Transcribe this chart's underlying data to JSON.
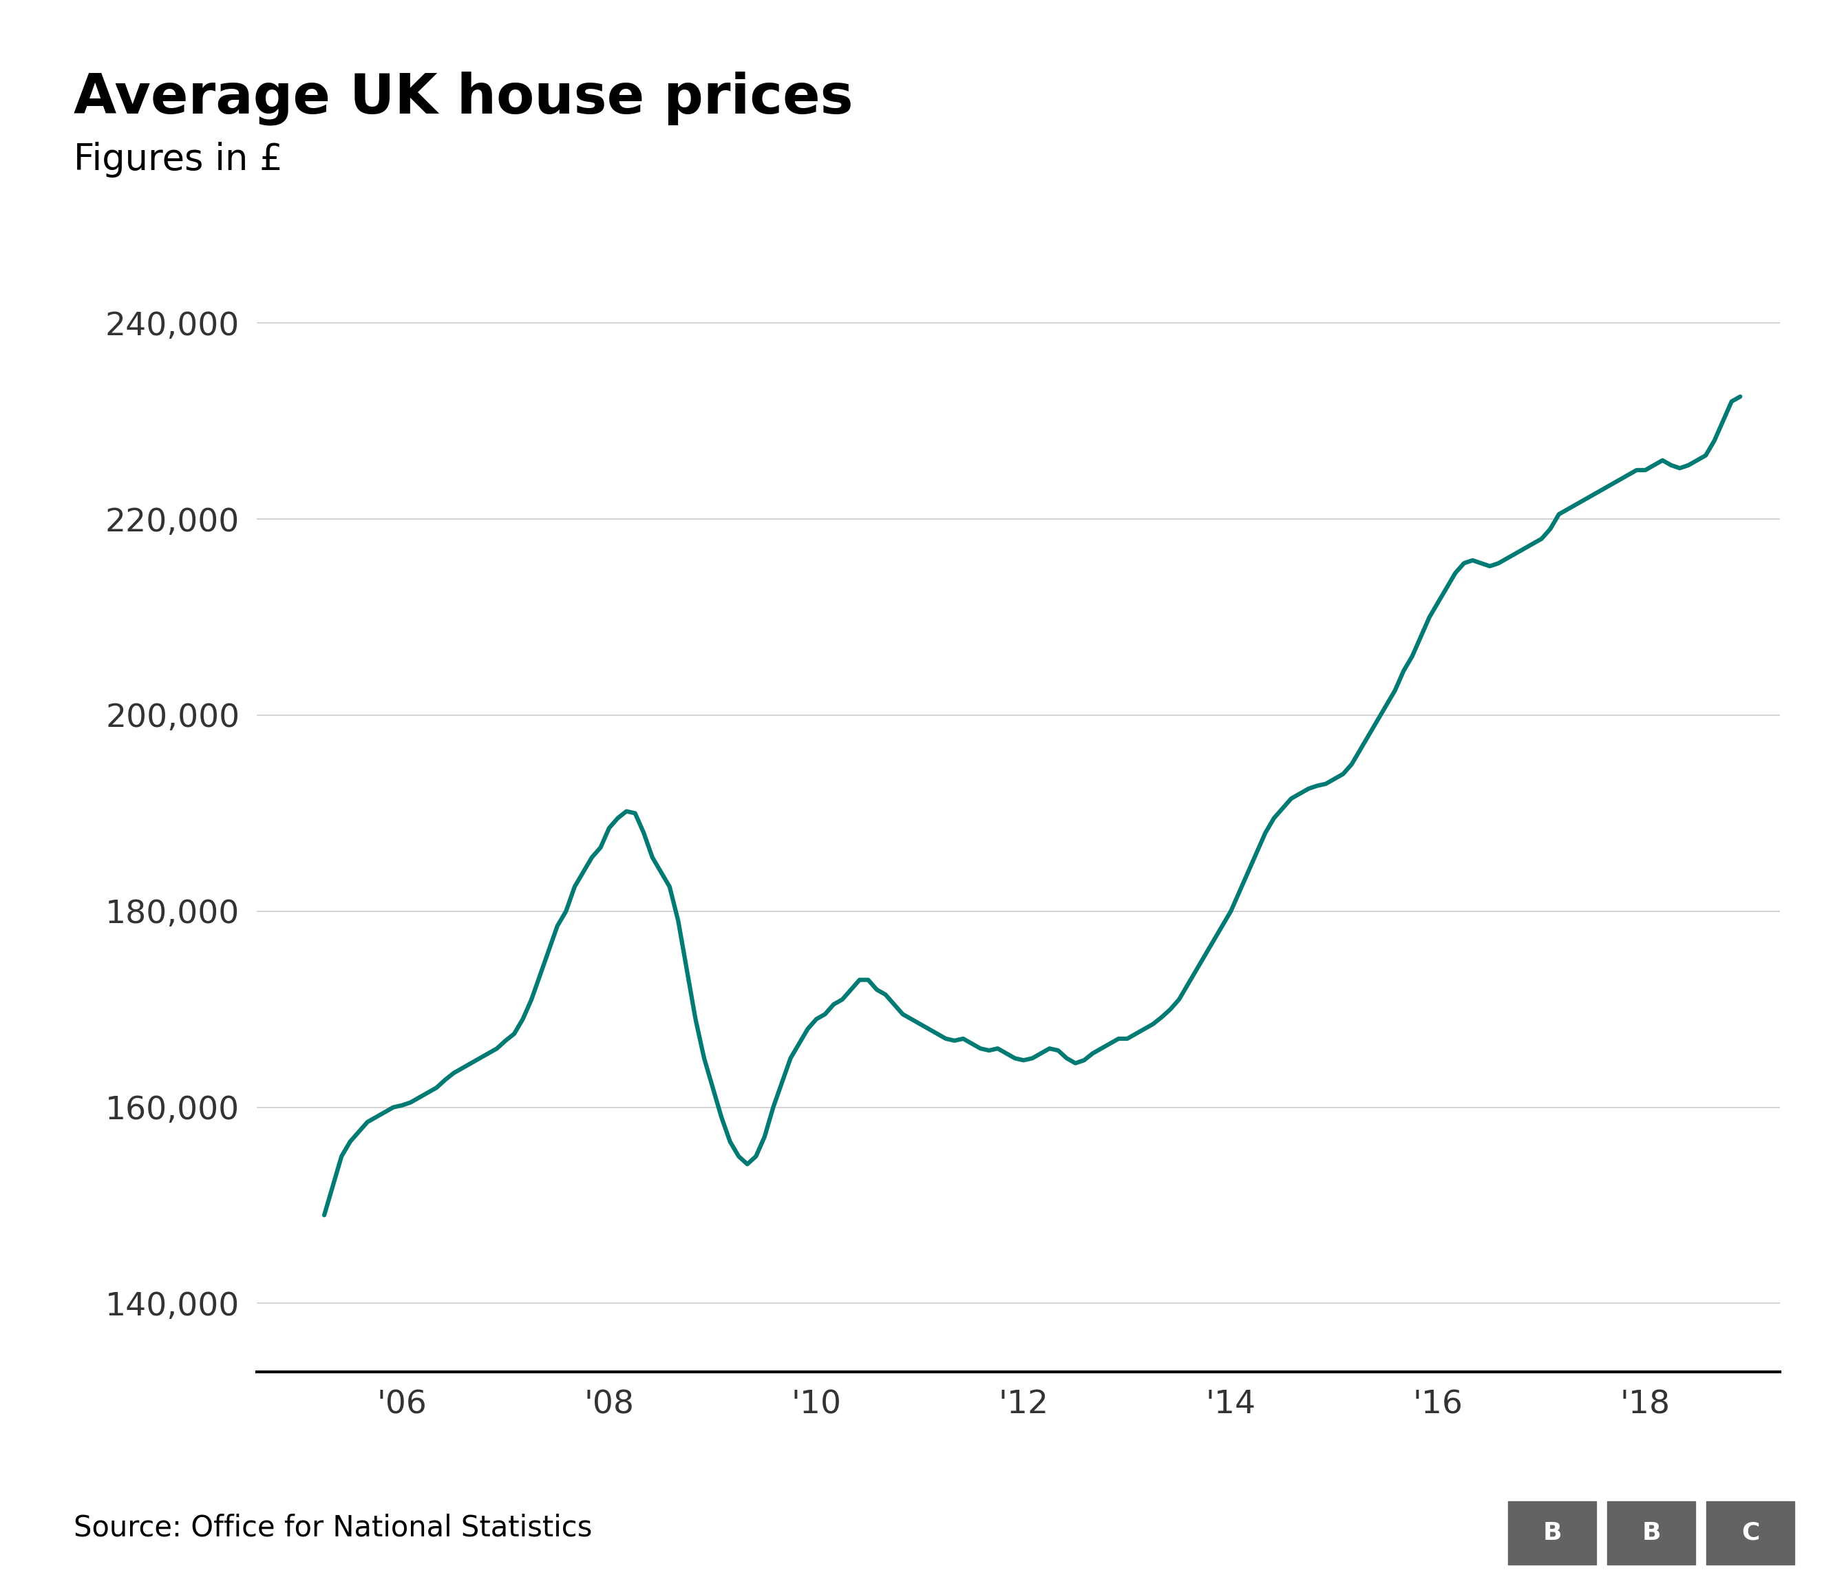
{
  "title": "Average UK house prices",
  "subtitle": "Figures in £",
  "source": "Source: Office for National Statistics",
  "line_color": "#007a73",
  "line_width": 4.5,
  "background_color": "#ffffff",
  "yticks": [
    140000,
    160000,
    180000,
    200000,
    220000,
    240000
  ],
  "ylim": [
    133000,
    244000
  ],
  "xtick_labels": [
    "'06",
    "'08",
    "'10",
    "'12",
    "'14",
    "'16",
    "'18"
  ],
  "xtick_positions": [
    2006,
    2008,
    2010,
    2012,
    2014,
    2016,
    2018
  ],
  "xlim": [
    2004.6,
    2019.3
  ],
  "title_fontsize": 58,
  "subtitle_fontsize": 38,
  "tick_fontsize": 34,
  "source_fontsize": 30,
  "bbc_color": "#636363",
  "data": {
    "2005-04": 149000,
    "2005-05": 152000,
    "2005-06": 155000,
    "2005-07": 156500,
    "2005-08": 157500,
    "2005-09": 158500,
    "2005-10": 159000,
    "2005-11": 159500,
    "2005-12": 160000,
    "2006-01": 160200,
    "2006-02": 160500,
    "2006-03": 161000,
    "2006-04": 161500,
    "2006-05": 162000,
    "2006-06": 162800,
    "2006-07": 163500,
    "2006-08": 164000,
    "2006-09": 164500,
    "2006-10": 165000,
    "2006-11": 165500,
    "2006-12": 166000,
    "2007-01": 166800,
    "2007-02": 167500,
    "2007-03": 169000,
    "2007-04": 171000,
    "2007-05": 173500,
    "2007-06": 176000,
    "2007-07": 178500,
    "2007-08": 180000,
    "2007-09": 182500,
    "2007-10": 184000,
    "2007-11": 185500,
    "2007-12": 186500,
    "2008-01": 188500,
    "2008-02": 189500,
    "2008-03": 190200,
    "2008-04": 190000,
    "2008-05": 188000,
    "2008-06": 185500,
    "2008-07": 184000,
    "2008-08": 182500,
    "2008-09": 179000,
    "2008-10": 174000,
    "2008-11": 169000,
    "2008-12": 165000,
    "2009-01": 162000,
    "2009-02": 159000,
    "2009-03": 156500,
    "2009-04": 155000,
    "2009-05": 154200,
    "2009-06": 155000,
    "2009-07": 157000,
    "2009-08": 160000,
    "2009-09": 162500,
    "2009-10": 165000,
    "2009-11": 166500,
    "2009-12": 168000,
    "2010-01": 169000,
    "2010-02": 169500,
    "2010-03": 170500,
    "2010-04": 171000,
    "2010-05": 172000,
    "2010-06": 173000,
    "2010-07": 173000,
    "2010-08": 172000,
    "2010-09": 171500,
    "2010-10": 170500,
    "2010-11": 169500,
    "2010-12": 169000,
    "2011-01": 168500,
    "2011-02": 168000,
    "2011-03": 167500,
    "2011-04": 167000,
    "2011-05": 166800,
    "2011-06": 167000,
    "2011-07": 166500,
    "2011-08": 166000,
    "2011-09": 165800,
    "2011-10": 166000,
    "2011-11": 165500,
    "2011-12": 165000,
    "2012-01": 164800,
    "2012-02": 165000,
    "2012-03": 165500,
    "2012-04": 166000,
    "2012-05": 165800,
    "2012-06": 165000,
    "2012-07": 164500,
    "2012-08": 164800,
    "2012-09": 165500,
    "2012-10": 166000,
    "2012-11": 166500,
    "2012-12": 167000,
    "2013-01": 167000,
    "2013-02": 167500,
    "2013-03": 168000,
    "2013-04": 168500,
    "2013-05": 169200,
    "2013-06": 170000,
    "2013-07": 171000,
    "2013-08": 172500,
    "2013-09": 174000,
    "2013-10": 175500,
    "2013-11": 177000,
    "2013-12": 178500,
    "2014-01": 180000,
    "2014-02": 182000,
    "2014-03": 184000,
    "2014-04": 186000,
    "2014-05": 188000,
    "2014-06": 189500,
    "2014-07": 190500,
    "2014-08": 191500,
    "2014-09": 192000,
    "2014-10": 192500,
    "2014-11": 192800,
    "2014-12": 193000,
    "2015-01": 193500,
    "2015-02": 194000,
    "2015-03": 195000,
    "2015-04": 196500,
    "2015-05": 198000,
    "2015-06": 199500,
    "2015-07": 201000,
    "2015-08": 202500,
    "2015-09": 204500,
    "2015-10": 206000,
    "2015-11": 208000,
    "2015-12": 210000,
    "2016-01": 211500,
    "2016-02": 213000,
    "2016-03": 214500,
    "2016-04": 215500,
    "2016-05": 215800,
    "2016-06": 215500,
    "2016-07": 215200,
    "2016-08": 215500,
    "2016-09": 216000,
    "2016-10": 216500,
    "2016-11": 217000,
    "2016-12": 217500,
    "2017-01": 218000,
    "2017-02": 219000,
    "2017-03": 220500,
    "2017-04": 221000,
    "2017-05": 221500,
    "2017-06": 222000,
    "2017-07": 222500,
    "2017-08": 223000,
    "2017-09": 223500,
    "2017-10": 224000,
    "2017-11": 224500,
    "2017-12": 225000,
    "2018-01": 225000,
    "2018-02": 225500,
    "2018-03": 226000,
    "2018-04": 225500,
    "2018-05": 225200,
    "2018-06": 225500,
    "2018-07": 226000,
    "2018-08": 226500,
    "2018-09": 228000,
    "2018-10": 230000,
    "2018-11": 232000,
    "2018-12": 232500
  }
}
